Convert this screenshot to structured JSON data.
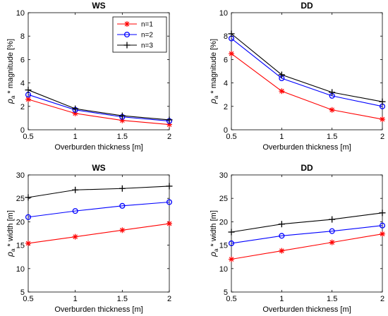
{
  "chart_data": [
    {
      "type": "line",
      "title": "WS",
      "xlabel": "Overburden thickness [m]",
      "ylabel_main": "ρ",
      "ylabel_sub": "a",
      "ylabel_rest": "* magnitude [%]",
      "x": [
        0.5,
        1,
        1.5,
        2
      ],
      "xticks": [
        "0.5",
        "1",
        "1.5",
        "2"
      ],
      "xlim": [
        0.5,
        2
      ],
      "ylim": [
        0,
        10
      ],
      "yticks": [
        "0",
        "2",
        "4",
        "6",
        "8",
        "10"
      ],
      "ytick_values": [
        0,
        2,
        4,
        6,
        8,
        10
      ],
      "legend": "top-right",
      "series": [
        {
          "name": "n=1",
          "values": [
            2.6,
            1.4,
            0.8,
            0.45
          ],
          "color": "#ff0000",
          "marker": "asterisk"
        },
        {
          "name": "n=2",
          "values": [
            3.0,
            1.7,
            1.1,
            0.75
          ],
          "color": "#0000ff",
          "marker": "circle"
        },
        {
          "name": "n=3",
          "values": [
            3.4,
            1.8,
            1.2,
            0.85
          ],
          "color": "#000000",
          "marker": "plus"
        }
      ]
    },
    {
      "type": "line",
      "title": "DD",
      "xlabel": "Overburden thickness [m]",
      "ylabel_main": "ρ",
      "ylabel_sub": "a",
      "ylabel_rest": "* magnitude [%]",
      "x": [
        0.5,
        1,
        1.5,
        2
      ],
      "xticks": [
        "0.5",
        "1",
        "1.5",
        "2"
      ],
      "xlim": [
        0.5,
        2
      ],
      "ylim": [
        0,
        10
      ],
      "yticks": [
        "0",
        "2",
        "4",
        "6",
        "8",
        "10"
      ],
      "ytick_values": [
        0,
        2,
        4,
        6,
        8,
        10
      ],
      "series": [
        {
          "name": "n=1",
          "values": [
            6.5,
            3.3,
            1.7,
            0.9
          ],
          "color": "#ff0000",
          "marker": "asterisk"
        },
        {
          "name": "n=2",
          "values": [
            7.8,
            4.4,
            2.9,
            2.0
          ],
          "color": "#0000ff",
          "marker": "circle"
        },
        {
          "name": "n=3",
          "values": [
            8.2,
            4.7,
            3.2,
            2.4
          ],
          "color": "#000000",
          "marker": "plus"
        }
      ]
    },
    {
      "type": "line",
      "title": "WS",
      "xlabel": "Overburden thickness [m]",
      "ylabel_main": "ρ",
      "ylabel_sub": "a",
      "ylabel_rest": "* width [m]",
      "x": [
        0.5,
        1,
        1.5,
        2
      ],
      "xticks": [
        "0.5",
        "1",
        "1.5",
        "2"
      ],
      "xlim": [
        0.5,
        2
      ],
      "ylim": [
        5,
        30
      ],
      "yticks": [
        "5",
        "10",
        "15",
        "20",
        "25",
        "30"
      ],
      "ytick_values": [
        5,
        10,
        15,
        20,
        25,
        30
      ],
      "series": [
        {
          "name": "n=1",
          "values": [
            15.4,
            16.8,
            18.2,
            19.6
          ],
          "color": "#ff0000",
          "marker": "asterisk"
        },
        {
          "name": "n=2",
          "values": [
            21.0,
            22.3,
            23.4,
            24.2
          ],
          "color": "#0000ff",
          "marker": "circle"
        },
        {
          "name": "n=3",
          "values": [
            25.2,
            26.8,
            27.1,
            27.6
          ],
          "color": "#000000",
          "marker": "plus"
        }
      ]
    },
    {
      "type": "line",
      "title": "DD",
      "xlabel": "Overburden thickness [m]",
      "ylabel_main": "ρ",
      "ylabel_sub": "a",
      "ylabel_rest": "* width [m]",
      "x": [
        0.5,
        1,
        1.5,
        2
      ],
      "xticks": [
        "0.5",
        "1",
        "1.5",
        "2"
      ],
      "xlim": [
        0.5,
        2
      ],
      "ylim": [
        5,
        30
      ],
      "yticks": [
        "5",
        "10",
        "15",
        "20",
        "25",
        "30"
      ],
      "ytick_values": [
        5,
        10,
        15,
        20,
        25,
        30
      ],
      "series": [
        {
          "name": "n=1",
          "values": [
            12.0,
            13.8,
            15.6,
            17.4
          ],
          "color": "#ff0000",
          "marker": "asterisk"
        },
        {
          "name": "n=2",
          "values": [
            15.4,
            17.0,
            18.0,
            19.2
          ],
          "color": "#0000ff",
          "marker": "circle"
        },
        {
          "name": "n=3",
          "values": [
            17.8,
            19.5,
            20.5,
            21.9
          ],
          "color": "#000000",
          "marker": "plus"
        }
      ]
    }
  ]
}
